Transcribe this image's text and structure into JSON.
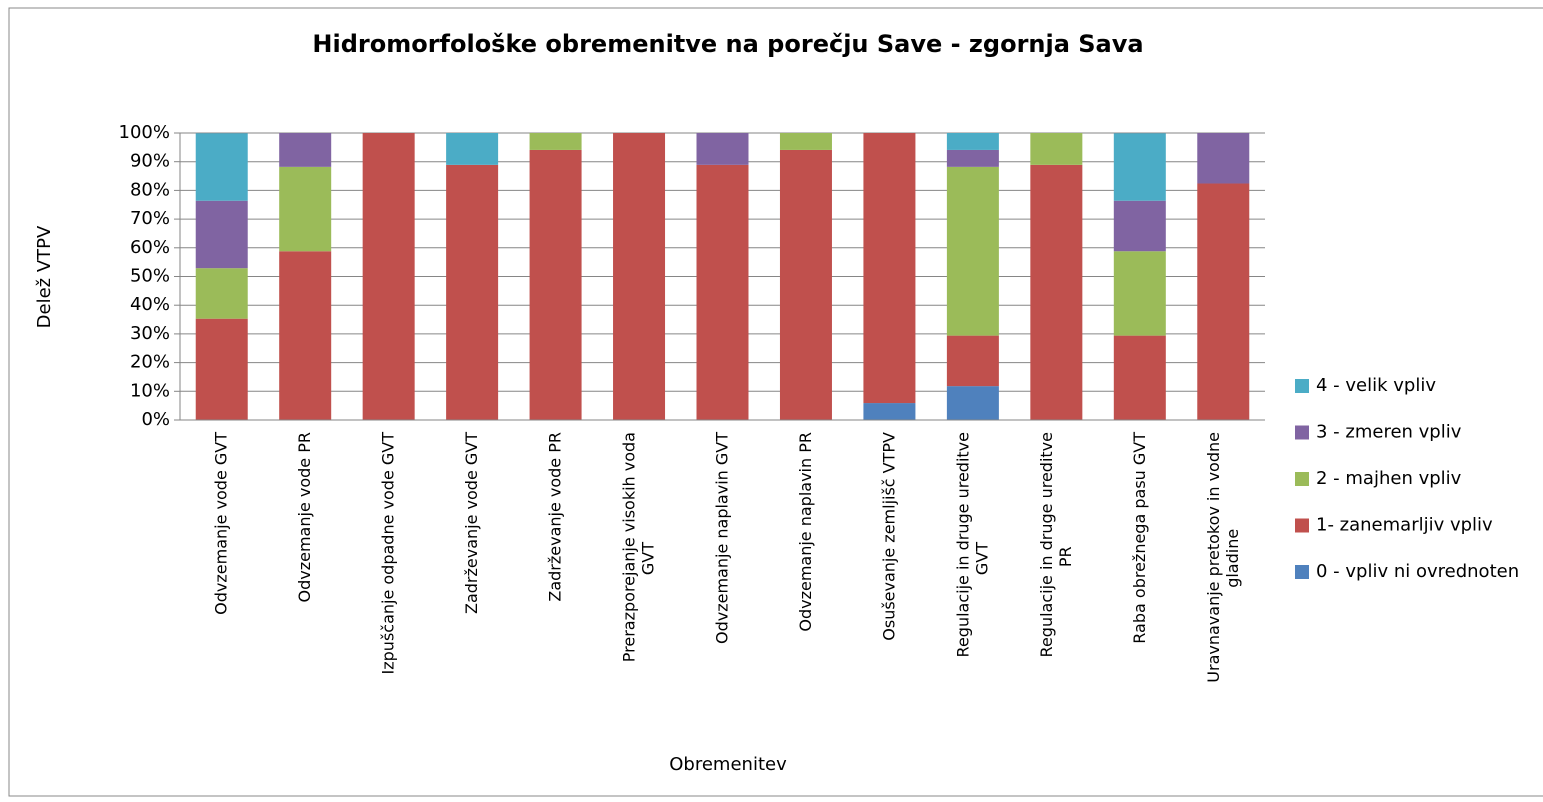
{
  "chart_data": {
    "type": "stacked_bar",
    "title": "Hidromorfološke obremenitve na porečju Save - zgornja Sava",
    "y_label": "Delež VTPV",
    "x_label": "Obremenitev",
    "categories": [
      "Odvzemanje vode GVT",
      "Odvzemanje vode PR",
      "Izpuščanje odpadne vode GVT",
      "Zadrževanje vode GVT",
      "Zadrževanje vode PR",
      "Prerazporejanje visokih voda GVT",
      "Odvzemanje naplavin GVT",
      "Odvzemanje naplavin PR",
      "Osuševanje zemljišč VTPV",
      "Regulacije in druge ureditve GVT",
      "Regulacije in druge ureditve PR",
      "Raba obrežnega pasu GVT",
      "Uravnavanje pretokov in vodne gladine"
    ],
    "series": [
      {
        "name": "0 - vpliv ni ovrednoten",
        "color": "#4f81bd",
        "values": [
          0,
          0,
          0,
          0,
          0,
          0,
          0,
          0,
          5.9,
          11.8,
          0,
          0,
          0
        ]
      },
      {
        "name": "1- zanemarljiv vpliv",
        "color": "#c0504d",
        "values": [
          35.3,
          58.8,
          100,
          88.9,
          94.1,
          100,
          88.9,
          94.1,
          94.1,
          17.6,
          88.9,
          29.4,
          82.4
        ]
      },
      {
        "name": "2 - majhen vpliv",
        "color": "#9bbb59",
        "values": [
          17.6,
          29.4,
          0,
          0,
          5.9,
          0,
          0,
          5.9,
          0,
          58.8,
          11.1,
          29.4,
          0
        ]
      },
      {
        "name": "3 - zmeren vpliv",
        "color": "#8064a2",
        "values": [
          23.5,
          11.8,
          0,
          0,
          0,
          0,
          11.1,
          0,
          0,
          5.9,
          0,
          17.6,
          17.6
        ]
      },
      {
        "name": "4 - velik vpliv",
        "color": "#4bacc6",
        "values": [
          23.5,
          0,
          0,
          11.1,
          0,
          0,
          0,
          0,
          0,
          5.9,
          0,
          23.5,
          0
        ]
      }
    ],
    "ylim": [
      0,
      100
    ],
    "yticks": [
      {
        "value": 0,
        "label": "0%"
      },
      {
        "value": 10,
        "label": "10%"
      },
      {
        "value": 20,
        "label": "20%"
      },
      {
        "value": 30,
        "label": "30%"
      },
      {
        "value": 40,
        "label": "40%"
      },
      {
        "value": 50,
        "label": "50%"
      },
      {
        "value": 60,
        "label": "60%"
      },
      {
        "value": 70,
        "label": "70%"
      },
      {
        "value": 80,
        "label": "80%"
      },
      {
        "value": 90,
        "label": "90%"
      },
      {
        "value": 100,
        "label": "100%"
      }
    ],
    "grid": true,
    "legend": "right"
  }
}
